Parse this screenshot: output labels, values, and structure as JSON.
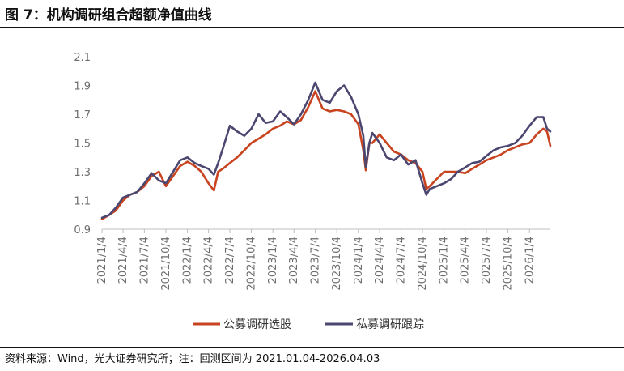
{
  "header": {
    "title": "图 7：机构调研组合超额净值曲线"
  },
  "footer": {
    "source": "资料来源：Wind，光大证券研究所；注：回测区间为 2021.01.04-2026.04.03"
  },
  "chart_data": {
    "type": "line",
    "title": "图 7：机构调研组合超额净值曲线",
    "xlabel": "",
    "ylabel": "",
    "ylim": [
      0.9,
      2.1
    ],
    "yticks": [
      0.9,
      1.1,
      1.3,
      1.5,
      1.7,
      1.9,
      2.1
    ],
    "xticks": [
      "2021/1/4",
      "2021/4/4",
      "2021/7/4",
      "2021/10/4",
      "2022/1/4",
      "2022/4/4",
      "2022/7/4",
      "2022/10/4",
      "2023/1/4",
      "2023/4/4",
      "2023/7/4",
      "2023/10/4",
      "2024/1/4",
      "2024/4/4",
      "2024/7/4",
      "2024/10/4",
      "2025/1/4",
      "2025/4/4",
      "2025/7/4",
      "2025/10/4",
      "2026/1/4"
    ],
    "xrange": [
      "2021/1/4",
      "2026/4/3"
    ],
    "grid": false,
    "legend": "bottom",
    "series": [
      {
        "name": "公募调研选股",
        "color": "#c8431f",
        "x": [
          "2021/1/4",
          "2021/2/4",
          "2021/3/4",
          "2021/4/4",
          "2021/5/4",
          "2021/6/4",
          "2021/7/4",
          "2021/8/4",
          "2021/9/4",
          "2021/10/4",
          "2021/11/4",
          "2021/12/4",
          "2022/1/4",
          "2022/2/4",
          "2022/3/4",
          "2022/4/4",
          "2022/4/27",
          "2022/5/15",
          "2022/6/4",
          "2022/7/4",
          "2022/8/4",
          "2022/9/4",
          "2022/10/4",
          "2022/11/4",
          "2022/12/4",
          "2023/1/4",
          "2023/2/4",
          "2023/3/4",
          "2023/4/4",
          "2023/5/4",
          "2023/6/4",
          "2023/7/4",
          "2023/8/4",
          "2023/9/4",
          "2023/10/4",
          "2023/11/4",
          "2023/12/4",
          "2024/1/4",
          "2024/1/25",
          "2024/2/5",
          "2024/2/20",
          "2024/3/4",
          "2024/4/4",
          "2024/5/4",
          "2024/6/4",
          "2024/7/4",
          "2024/8/4",
          "2024/9/4",
          "2024/10/4",
          "2024/10/20",
          "2024/11/4",
          "2024/12/4",
          "2025/1/4",
          "2025/2/4",
          "2025/3/4",
          "2025/4/4",
          "2025/5/4",
          "2025/6/4",
          "2025/7/4",
          "2025/8/4",
          "2025/9/4",
          "2025/10/4",
          "2025/11/4",
          "2025/12/4",
          "2026/1/4",
          "2026/2/4",
          "2026/3/4",
          "2026/3/20",
          "2026/4/3"
        ],
        "values": [
          0.97,
          1.0,
          1.03,
          1.1,
          1.14,
          1.16,
          1.2,
          1.27,
          1.3,
          1.2,
          1.27,
          1.34,
          1.37,
          1.34,
          1.3,
          1.22,
          1.17,
          1.3,
          1.32,
          1.36,
          1.4,
          1.45,
          1.5,
          1.53,
          1.56,
          1.6,
          1.62,
          1.65,
          1.63,
          1.66,
          1.75,
          1.86,
          1.74,
          1.72,
          1.73,
          1.72,
          1.7,
          1.63,
          1.45,
          1.31,
          1.5,
          1.5,
          1.56,
          1.5,
          1.44,
          1.42,
          1.38,
          1.36,
          1.3,
          1.18,
          1.2,
          1.25,
          1.3,
          1.3,
          1.3,
          1.29,
          1.32,
          1.35,
          1.38,
          1.4,
          1.42,
          1.45,
          1.47,
          1.49,
          1.5,
          1.56,
          1.6,
          1.58,
          1.48
        ]
      },
      {
        "name": "私募调研跟踪",
        "color": "#4b4770",
        "x": [
          "2021/1/4",
          "2021/2/4",
          "2021/3/4",
          "2021/4/4",
          "2021/5/4",
          "2021/6/4",
          "2021/7/4",
          "2021/8/4",
          "2021/9/4",
          "2021/10/4",
          "2021/11/4",
          "2021/12/4",
          "2022/1/4",
          "2022/2/4",
          "2022/3/4",
          "2022/4/4",
          "2022/4/27",
          "2022/5/15",
          "2022/6/4",
          "2022/7/4",
          "2022/8/4",
          "2022/9/4",
          "2022/10/4",
          "2022/11/4",
          "2022/12/4",
          "2023/1/4",
          "2023/2/4",
          "2023/3/4",
          "2023/4/4",
          "2023/5/4",
          "2023/6/4",
          "2023/7/4",
          "2023/8/4",
          "2023/9/4",
          "2023/10/4",
          "2023/11/4",
          "2023/12/4",
          "2024/1/4",
          "2024/1/25",
          "2024/2/5",
          "2024/2/20",
          "2024/3/4",
          "2024/4/4",
          "2024/5/4",
          "2024/6/4",
          "2024/7/4",
          "2024/8/4",
          "2024/9/4",
          "2024/10/4",
          "2024/10/20",
          "2024/11/4",
          "2024/12/4",
          "2025/1/4",
          "2025/2/4",
          "2025/3/4",
          "2025/4/4",
          "2025/5/4",
          "2025/6/4",
          "2025/7/4",
          "2025/8/4",
          "2025/9/4",
          "2025/10/4",
          "2025/11/4",
          "2025/12/4",
          "2026/1/4",
          "2026/2/4",
          "2026/3/4",
          "2026/3/20",
          "2026/4/3"
        ],
        "values": [
          0.98,
          1.0,
          1.05,
          1.12,
          1.14,
          1.16,
          1.22,
          1.29,
          1.24,
          1.22,
          1.3,
          1.38,
          1.4,
          1.36,
          1.34,
          1.32,
          1.28,
          1.36,
          1.46,
          1.62,
          1.58,
          1.55,
          1.6,
          1.7,
          1.64,
          1.65,
          1.72,
          1.68,
          1.63,
          1.7,
          1.8,
          1.92,
          1.8,
          1.78,
          1.86,
          1.9,
          1.82,
          1.7,
          1.55,
          1.33,
          1.5,
          1.57,
          1.5,
          1.4,
          1.38,
          1.42,
          1.35,
          1.38,
          1.22,
          1.14,
          1.18,
          1.2,
          1.22,
          1.25,
          1.3,
          1.33,
          1.36,
          1.37,
          1.41,
          1.45,
          1.47,
          1.48,
          1.5,
          1.55,
          1.62,
          1.68,
          1.68,
          1.6,
          1.58
        ]
      }
    ]
  }
}
